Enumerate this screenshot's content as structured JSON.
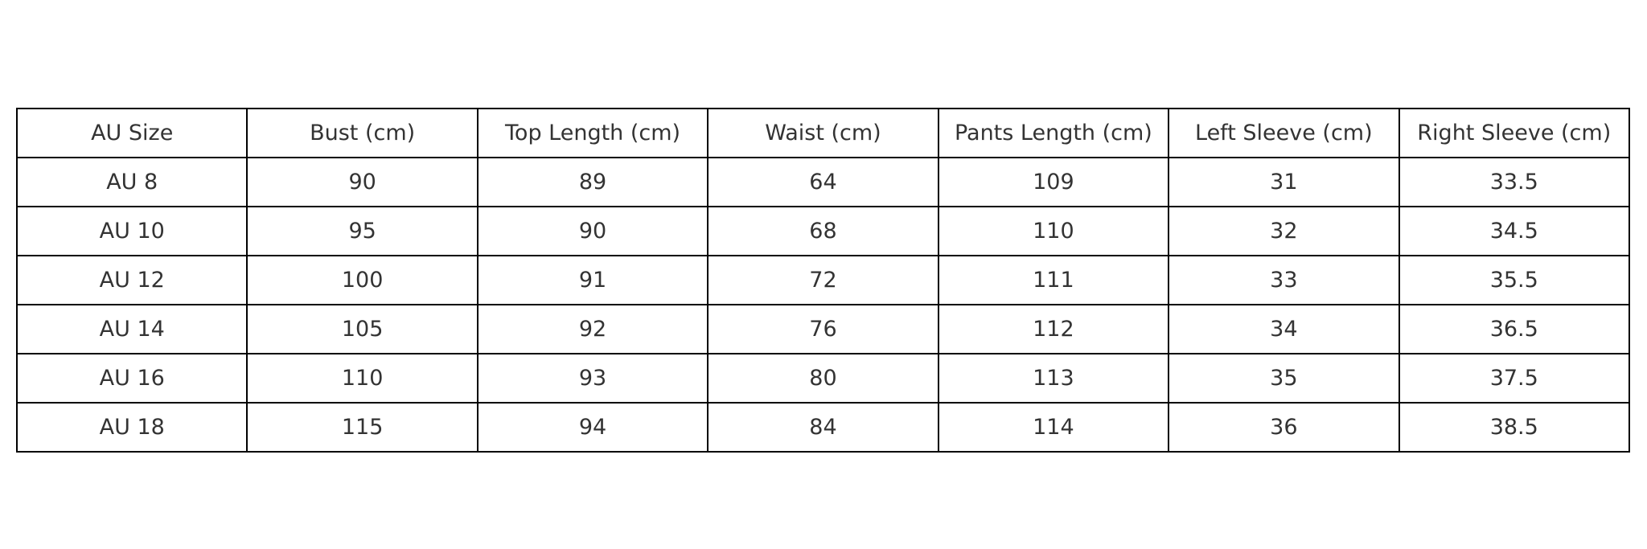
{
  "table": {
    "headers": [
      "AU Size",
      "Bust (cm)",
      "Top Length (cm)",
      "Waist (cm)",
      "Pants Length (cm)",
      "Left Sleeve (cm)",
      "Right Sleeve (cm)"
    ],
    "rows": [
      [
        "AU 8",
        "90",
        "89",
        "64",
        "109",
        "31",
        "33.5"
      ],
      [
        "AU 10",
        "95",
        "90",
        "68",
        "110",
        "32",
        "34.5"
      ],
      [
        "AU 12",
        "100",
        "91",
        "72",
        "111",
        "33",
        "35.5"
      ],
      [
        "AU 14",
        "105",
        "92",
        "76",
        "112",
        "34",
        "36.5"
      ],
      [
        "AU 16",
        "110",
        "93",
        "80",
        "113",
        "35",
        "37.5"
      ],
      [
        "AU 18",
        "115",
        "94",
        "84",
        "114",
        "36",
        "38.5"
      ]
    ]
  }
}
